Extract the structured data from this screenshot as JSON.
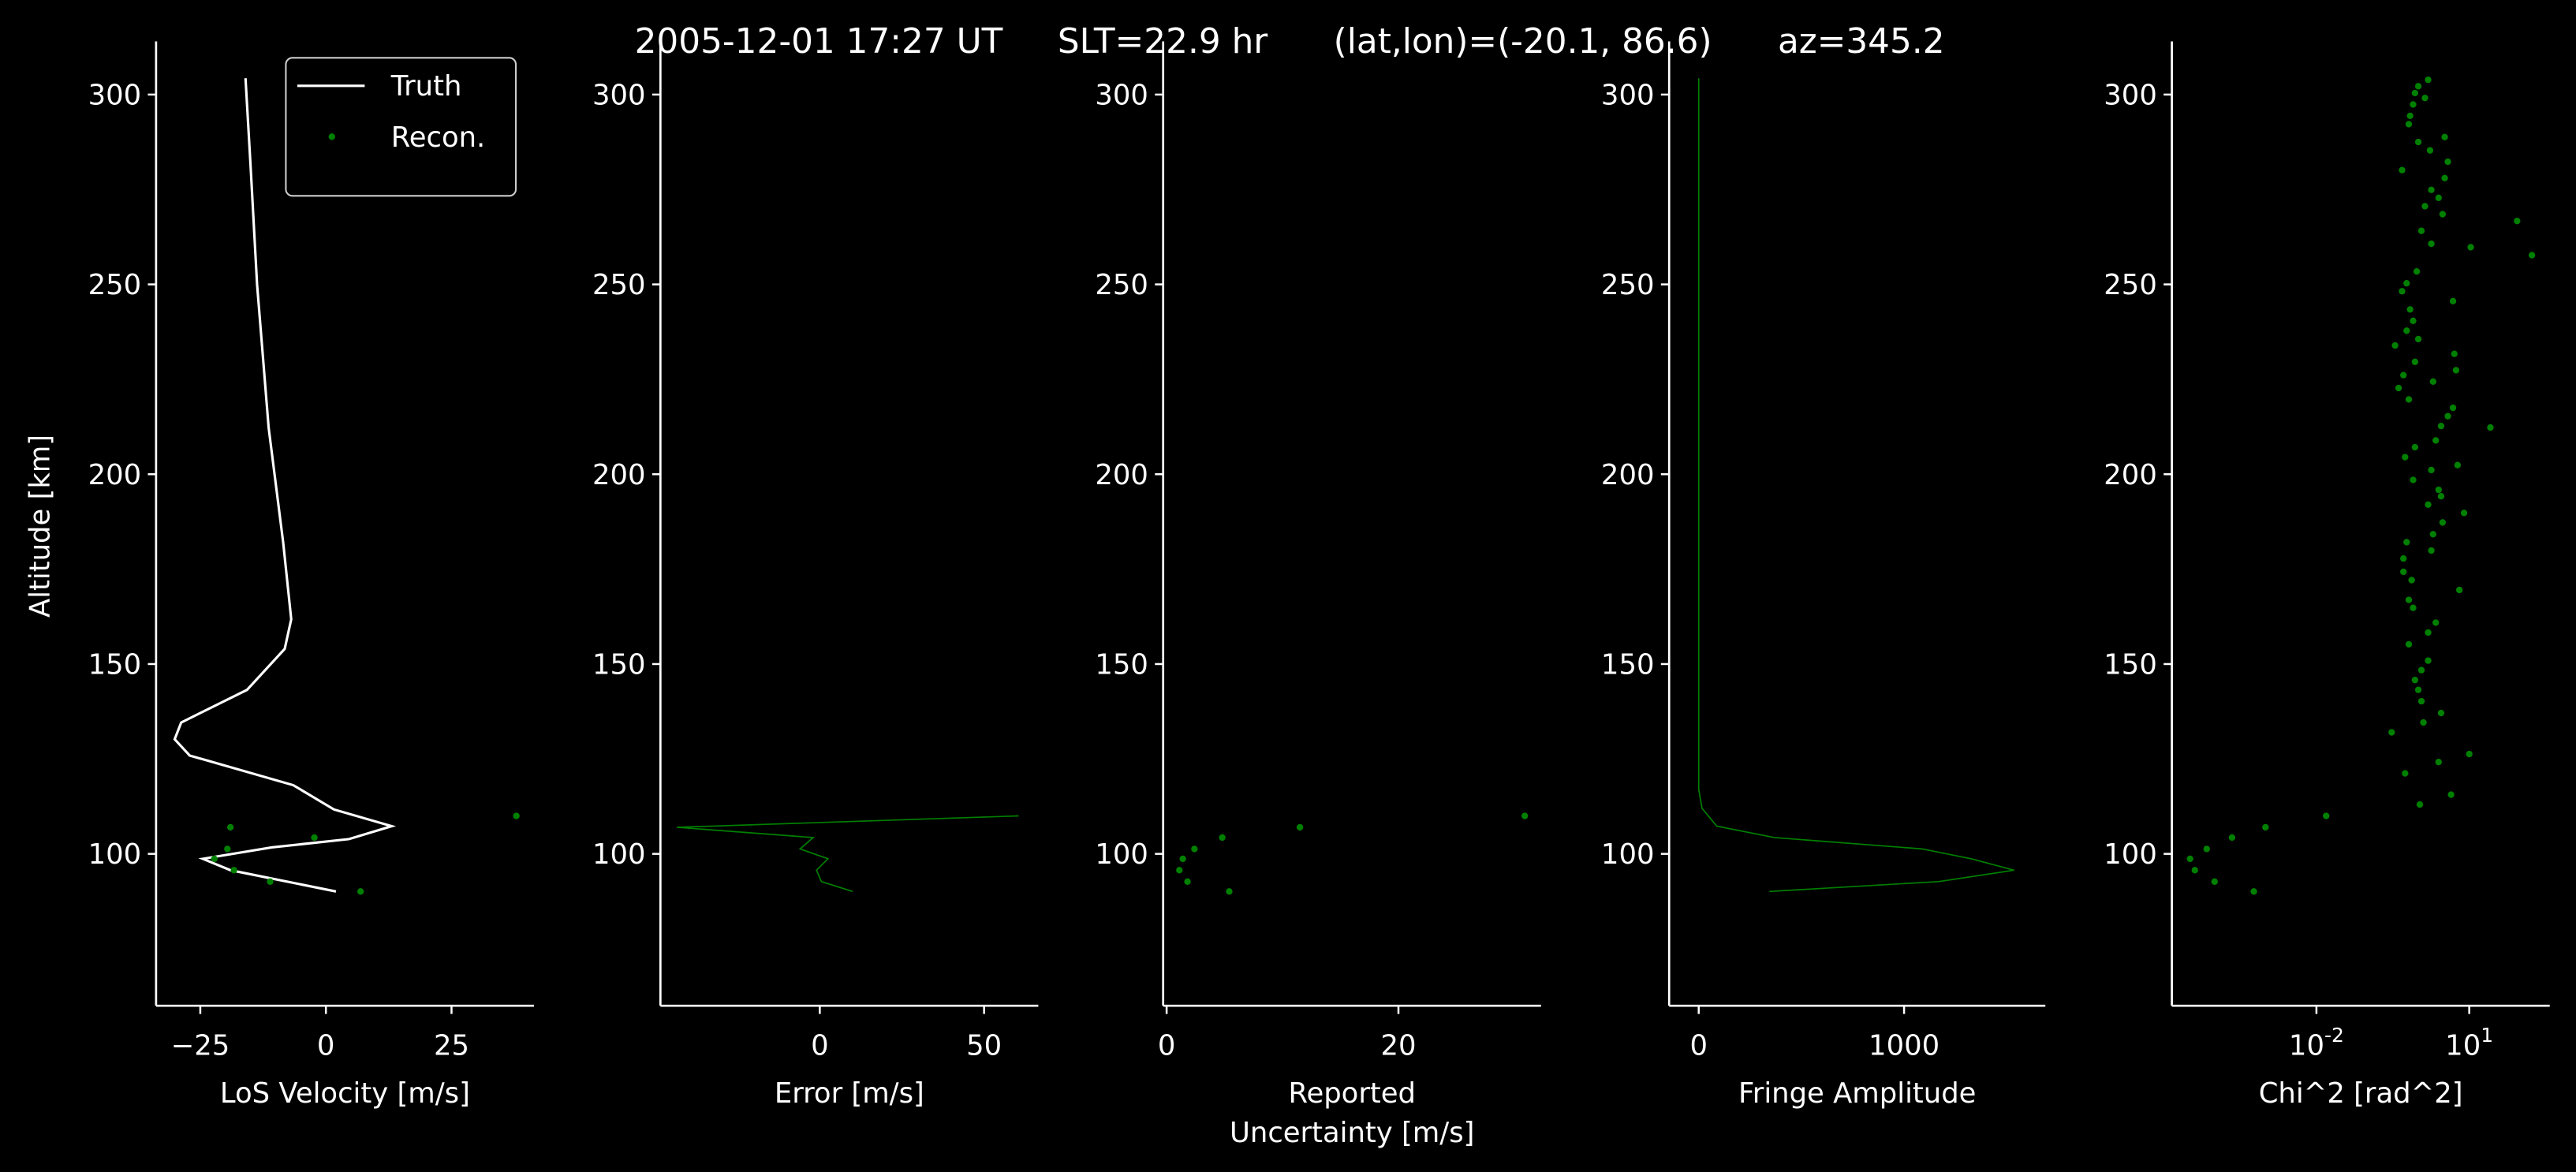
{
  "title": "2005-12-01 17:27 UT     SLT=22.9 hr      (lat,lon)=(-20.1, 86.6)      az=345.2",
  "chart_data": [
    {
      "type": "line",
      "xlabel": "LoS Velocity [m/s]",
      "ylabel": "Altitude [km]",
      "xlim": [
        -33.8,
        41.4
      ],
      "xticks": [
        {
          "value": -25,
          "label": "−25"
        },
        0,
        25
      ],
      "ylim": [
        60,
        314
      ],
      "yticks": [
        100,
        150,
        200,
        250,
        300
      ],
      "legend": "upper right",
      "series": [
        {
          "name": "Truth",
          "color": "#ffffff",
          "mode": "line",
          "x": [
            -16,
            -15,
            -13.7,
            -11.4,
            -8.5,
            -6.9,
            -8.2,
            -15.7,
            -28.8,
            -30.1,
            -27.1,
            -6.5,
            1.6,
            13.1,
            4.6,
            -10.8,
            -24.5,
            -19,
            2
          ],
          "values": [
            304.3,
            281.4,
            250,
            212.3,
            182,
            161.8,
            154,
            143.2,
            134.6,
            130.2,
            125.9,
            118.1,
            111.7,
            107.3,
            103.9,
            101.7,
            98.7,
            95.7,
            90.1
          ]
        },
        {
          "name": "Recon.",
          "color": "#008000",
          "mode": "markers",
          "x": [
            37.9,
            -19,
            -2.3,
            -19.6,
            -22.2,
            -18.3,
            -11.1,
            6.9
          ],
          "values": [
            110,
            107,
            104.3,
            101.3,
            98.7,
            95.7,
            92.7,
            90.1
          ]
        }
      ]
    },
    {
      "type": "line",
      "xlabel": "Error [m/s]",
      "xlim": [
        -48.5,
        66.5
      ],
      "xticks": [
        0,
        50
      ],
      "ylim": [
        60,
        314
      ],
      "yticks": [
        100,
        150,
        200,
        250,
        300
      ],
      "series": [
        {
          "color": "#008000",
          "mode": "line",
          "x": [
            60.5,
            -43.5,
            -2,
            -6,
            2.5,
            -1,
            0.5,
            10
          ],
          "values": [
            110,
            107,
            104.3,
            101.3,
            98.7,
            95.7,
            92.7,
            90.1
          ]
        }
      ]
    },
    {
      "type": "line",
      "xlabel": "Reported\nUncertainty [m/s]",
      "xlim": [
        -0.3,
        32.3
      ],
      "xticks": [
        0,
        20
      ],
      "ylim": [
        60,
        314
      ],
      "yticks": [
        100,
        150,
        200,
        250,
        300
      ],
      "series": [
        {
          "color": "#008000",
          "mode": "markers",
          "x": [
            30.9,
            11.5,
            4.8,
            2.4,
            1.4,
            1.1,
            1.8,
            5.4
          ],
          "values": [
            110,
            107,
            104.3,
            101.3,
            98.7,
            95.7,
            92.7,
            90.1
          ]
        }
      ]
    },
    {
      "type": "line",
      "xlabel": "Fringe Amplitude",
      "xlim": [
        -144,
        1688
      ],
      "xticks": [
        0,
        1000
      ],
      "ylim": [
        60,
        314
      ],
      "yticks": [
        100,
        150,
        200,
        250,
        300
      ],
      "series": [
        {
          "color": "#008000",
          "mode": "line",
          "x": [
            0,
            0,
            16,
            88,
            368,
            1088,
            1328,
            1536,
            1168,
            344
          ],
          "values": [
            304.3,
            117,
            112,
            107.3,
            104.3,
            101.3,
            98.7,
            95.7,
            92.7,
            90.1
          ]
        }
      ]
    },
    {
      "type": "scatter",
      "xlabel": "Chi^2 [rad^2]",
      "xscale": "log",
      "xlim": [
        1.45e-05,
        380
      ],
      "xticks": [
        {
          "value": 0.01,
          "label": "10^-2"
        },
        {
          "value": 10,
          "label": "10^1"
        }
      ],
      "ylim": [
        60,
        314
      ],
      "yticks": [
        100,
        150,
        200,
        250,
        300
      ],
      "series": [
        {
          "color": "#008000",
          "mode": "markers",
          "x": [
            1.56,
            1.0,
            0.86,
            1.35,
            0.79,
            0.69,
            0.65,
            3.3,
            1.0,
            1.7,
            3.8,
            0.48,
            3.3,
            1.8,
            2.5,
            1.35,
            3.0,
            87,
            1.15,
            1.8,
            10.7,
            170,
            0.93,
            0.59,
            0.48,
            4.8,
            0.69,
            0.79,
            0.59,
            1.0,
            0.35,
            5.1,
            0.86,
            0.51,
            5.5,
            1.95,
            0.41,
            0.65,
            4.8,
            3.8,
            2.8,
            26,
            2.2,
            0.86,
            0.55,
            5.9,
            1.8,
            0.79,
            2.5,
            2.8,
            1.56,
            7.9,
            3.0,
            1.95,
            0.59,
            1.8,
            0.51,
            0.51,
            0.74,
            6.4,
            0.65,
            0.79,
            2.2,
            1.56,
            0.65,
            1.56,
            1.15,
            0.86,
            1.0,
            1.15,
            2.8,
            1.26,
            0.3,
            10,
            2.5,
            0.55,
            4.4,
            1.07,
            0.0155,
            0.001,
            0.00022,
            7e-05,
            3.3e-05,
            4.1e-05,
            0.0001,
            0.00059
          ],
          "values": [
            303.9,
            302.2,
            300.4,
            299.1,
            297.4,
            294.4,
            292.2,
            288.8,
            287.5,
            285.3,
            282.3,
            280.1,
            278.0,
            274.9,
            272.8,
            270.6,
            268.5,
            266.7,
            264.1,
            260.7,
            259.8,
            257.7,
            253.4,
            250.3,
            248.2,
            245.6,
            243.4,
            240.4,
            237.8,
            235.6,
            233.9,
            231.7,
            229.6,
            226.1,
            227.4,
            224.4,
            222.7,
            219.7,
            217.5,
            215.3,
            212.7,
            212.3,
            208.9,
            207.1,
            204.5,
            202.4,
            201.1,
            198.5,
            195.9,
            194.2,
            192.0,
            189.8,
            187.3,
            184.2,
            182.1,
            179.9,
            177.8,
            174.3,
            172.1,
            169.5,
            166.9,
            164.8,
            160.9,
            158.3,
            155.2,
            150.9,
            148.4,
            145.8,
            143.2,
            140.2,
            137.1,
            134.6,
            132.0,
            126.3,
            124.2,
            121.2,
            115.6,
            113.0,
            110.0,
            107.0,
            104.3,
            101.3,
            98.7,
            95.7,
            92.7,
            90.1
          ]
        }
      ]
    }
  ]
}
